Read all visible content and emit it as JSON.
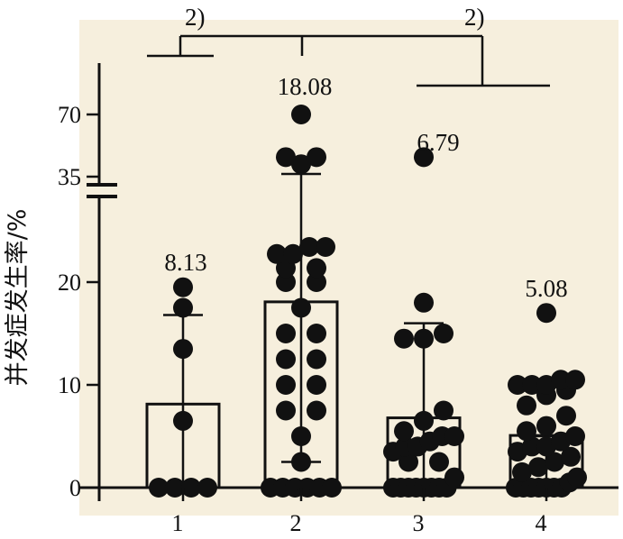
{
  "chart_data": {
    "type": "bar",
    "ylabel": "并发症发生率/%",
    "categories": [
      "1",
      "2",
      "3",
      "4"
    ],
    "values": [
      8.13,
      18.08,
      6.79,
      5.08
    ],
    "value_labels": [
      "8.13",
      "18.08",
      "6.79",
      "5.08"
    ],
    "error_low": [
      0,
      2.5,
      0,
      0
    ],
    "error_high": [
      16.8,
      36.5,
      16.0,
      5.0
    ],
    "y_ticks": [
      "0",
      "10",
      "20",
      "35",
      "70"
    ],
    "axis_break": true,
    "significance": [
      {
        "label": "2)",
        "from": "1",
        "to": "2"
      },
      {
        "label": "2)",
        "from": "2",
        "to": "3,4"
      }
    ],
    "points": [
      [
        0,
        0,
        0,
        0,
        6.5,
        13.5,
        17.5,
        19.5
      ],
      [
        0,
        0,
        0,
        0,
        0,
        0,
        2.5,
        5,
        7.5,
        7.5,
        10,
        10,
        12.5,
        12.5,
        15,
        15,
        17.5,
        20,
        20,
        22,
        22,
        24,
        24,
        25,
        25,
        42,
        46,
        46,
        70
      ],
      [
        0,
        0,
        0,
        0,
        0,
        0,
        0,
        0,
        1,
        2.5,
        2.5,
        3.5,
        4,
        4,
        4.5,
        5,
        5,
        5.5,
        6.5,
        7.5,
        14.5,
        14.5,
        15,
        18,
        46
      ],
      [
        0,
        0,
        0,
        0,
        0,
        0,
        0,
        0.5,
        1,
        1.5,
        2,
        2.5,
        3,
        3.5,
        4,
        4,
        4.5,
        5,
        5.5,
        6,
        7,
        8,
        9,
        9.5,
        10,
        10,
        10,
        10.5,
        10.5,
        17
      ]
    ]
  }
}
